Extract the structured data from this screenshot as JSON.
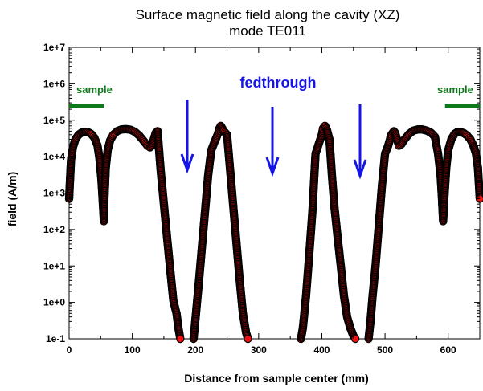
{
  "chart_data": {
    "type": "scatter",
    "title": "Surface magnetic field along the cavity (XZ)",
    "subtitle": "mode TE011",
    "xlabel": "Distance from sample center (mm)",
    "ylabel": "field (A/m)",
    "xlim": [
      0,
      650
    ],
    "ylim_log10": [
      -1,
      7
    ],
    "y_scale": "log",
    "x_ticks": [
      0,
      100,
      200,
      300,
      400,
      500,
      600
    ],
    "x_tick_labels": [
      "0",
      "100",
      "200",
      "300",
      "400",
      "500",
      "600"
    ],
    "y_ticks": [
      -1,
      0,
      1,
      2,
      3,
      4,
      5,
      6,
      7
    ],
    "y_tick_labels": [
      "1e-1",
      "1e+0",
      "1e+1",
      "1e+2",
      "1e+3",
      "1e+4",
      "1e+5",
      "1e+6",
      "1e+7"
    ],
    "grid": false,
    "legend": "none",
    "marker_fill": "#ee1111",
    "marker_edge": "#000000",
    "series_segments": [
      {
        "x": [
          0,
          3,
          6,
          10,
          15,
          20,
          25,
          30,
          35,
          40,
          45,
          48,
          51,
          53,
          54,
          55,
          56,
          58,
          61,
          65,
          70,
          76,
          83,
          90,
          97,
          104,
          111,
          118,
          124,
          128,
          131,
          134,
          137,
          140
        ],
        "y": [
          700,
          8000,
          18000,
          30000,
          40000,
          46000,
          48000,
          47000,
          42000,
          33000,
          20000,
          9000,
          2500,
          700,
          350,
          170,
          800,
          5000,
          15000,
          28000,
          40000,
          50000,
          56000,
          57000,
          55000,
          48000,
          38000,
          27000,
          20000,
          18000,
          20000,
          30000,
          45000,
          50000
        ]
      },
      {
        "x": [
          140,
          145,
          150,
          155,
          160,
          165,
          170,
          173,
          176
        ],
        "y": [
          50000,
          4000,
          500,
          60,
          8,
          1.1,
          0.5,
          0.2,
          0.1
        ]
      },
      {
        "x": [
          197,
          200,
          205,
          210,
          215,
          220,
          225,
          230,
          235,
          238,
          240,
          245,
          250,
          255,
          260,
          265,
          270,
          275,
          280,
          283
        ],
        "y": [
          0.1,
          0.35,
          3,
          30,
          300,
          3000,
          15000,
          25000,
          40000,
          60000,
          70000,
          50000,
          40000,
          4000,
          400,
          40,
          4,
          0.5,
          0.15,
          0.1
        ]
      },
      {
        "x": [
          367,
          370,
          375,
          380,
          385,
          390,
          395,
          400,
          402,
          405,
          408,
          412,
          416,
          420,
          425,
          430,
          435,
          440,
          445,
          450,
          453
        ],
        "y": [
          0.1,
          0.2,
          1.5,
          20,
          300,
          12000,
          22000,
          40000,
          60000,
          70000,
          55000,
          30000,
          3000,
          400,
          60,
          10,
          1.5,
          0.4,
          0.2,
          0.12,
          0.1
        ]
      },
      {
        "x": [
          474,
          477,
          480,
          485,
          490,
          495,
          500,
          505,
          510,
          514,
          516,
          519,
          522,
          526,
          531,
          538,
          545,
          552,
          559,
          566,
          573,
          579,
          584,
          588,
          590,
          592,
          594,
          597,
          600,
          605,
          610,
          615,
          620,
          625,
          630,
          635,
          640,
          644,
          647,
          650
        ],
        "y": [
          0.1,
          0.3,
          1.3,
          10,
          120,
          1500,
          12000,
          20000,
          40000,
          50000,
          45000,
          30000,
          20000,
          22000,
          30000,
          42000,
          52000,
          56000,
          56000,
          52000,
          45000,
          35000,
          12000,
          3000,
          800,
          170,
          800,
          5000,
          15000,
          30000,
          42000,
          48000,
          47000,
          44000,
          38000,
          30000,
          20000,
          12000,
          5000,
          700
        ]
      }
    ],
    "annotations": {
      "sample_left": "sample",
      "sample_right": "sample",
      "feedthrough": "fedthrough"
    },
    "annotation_colors": {
      "sample": "#0c7a1a",
      "feedthrough": "#1414e6"
    }
  }
}
